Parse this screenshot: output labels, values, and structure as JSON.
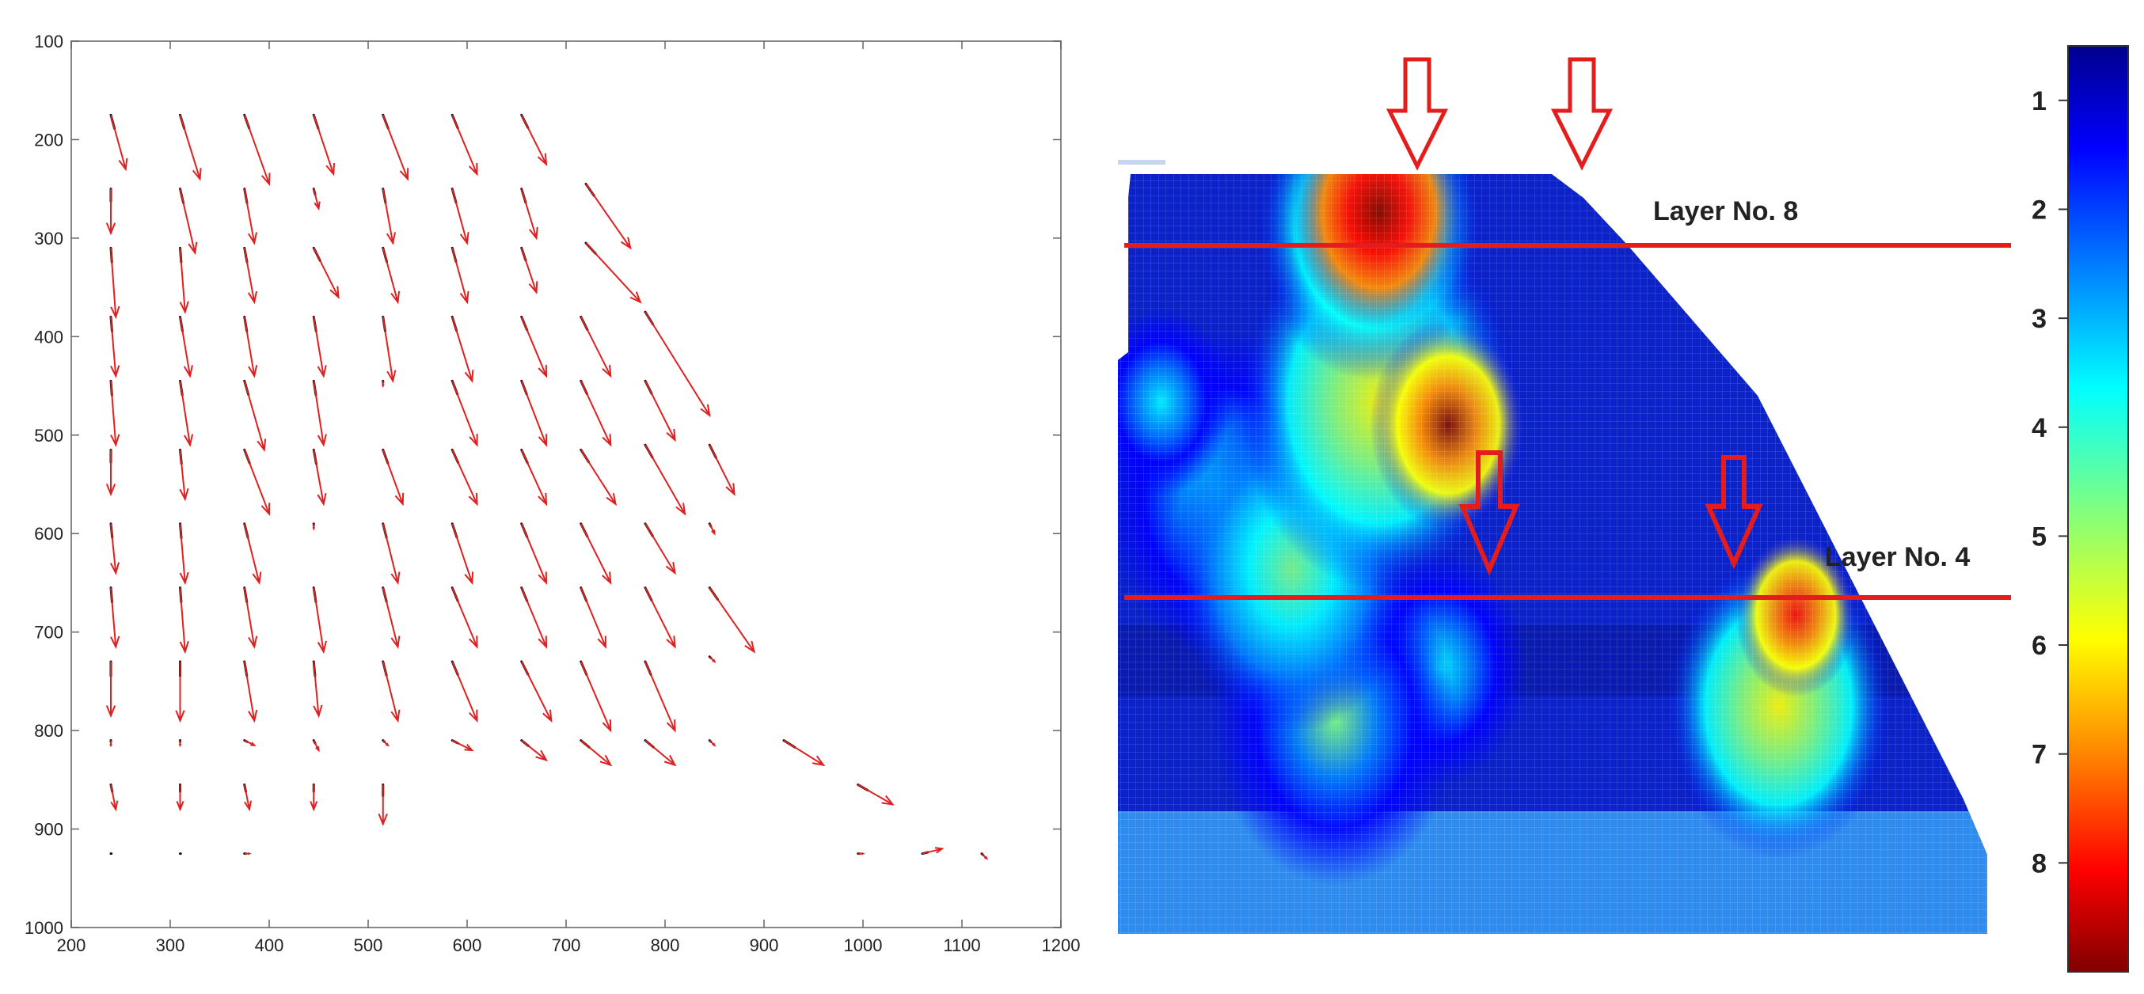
{
  "quiver_plot": {
    "chart_data": {
      "type": "scatter",
      "subtype": "quiver",
      "xlim": [
        200,
        1200
      ],
      "ylim": [
        1000,
        100
      ],
      "y_axis_inverted": true,
      "x_ticks": [
        "200",
        "300",
        "400",
        "500",
        "600",
        "700",
        "800",
        "900",
        "1000",
        "1100",
        "1200"
      ],
      "y_ticks": [
        "100",
        "200",
        "300",
        "400",
        "500",
        "600",
        "700",
        "800",
        "900",
        "1000"
      ],
      "grid": false,
      "colors": {
        "arrow": "#e02020",
        "base_stroke": "#111111",
        "frame": "#888888"
      },
      "arrows": [
        [
          240,
          175,
          255,
          230
        ],
        [
          310,
          175,
          330,
          240
        ],
        [
          375,
          175,
          400,
          245
        ],
        [
          445,
          175,
          465,
          235
        ],
        [
          515,
          175,
          540,
          240
        ],
        [
          585,
          175,
          610,
          235
        ],
        [
          655,
          175,
          680,
          225
        ],
        [
          240,
          250,
          240,
          295
        ],
        [
          310,
          250,
          325,
          315
        ],
        [
          375,
          250,
          385,
          305
        ],
        [
          445,
          250,
          450,
          270
        ],
        [
          515,
          250,
          525,
          305
        ],
        [
          585,
          250,
          600,
          305
        ],
        [
          655,
          250,
          670,
          300
        ],
        [
          720,
          245,
          765,
          310
        ],
        [
          240,
          310,
          245,
          380
        ],
        [
          310,
          310,
          315,
          375
        ],
        [
          375,
          310,
          385,
          365
        ],
        [
          445,
          310,
          470,
          360
        ],
        [
          515,
          310,
          530,
          365
        ],
        [
          585,
          310,
          600,
          365
        ],
        [
          655,
          310,
          670,
          355
        ],
        [
          720,
          305,
          775,
          365
        ],
        [
          240,
          380,
          245,
          440
        ],
        [
          310,
          380,
          320,
          440
        ],
        [
          375,
          380,
          385,
          440
        ],
        [
          445,
          380,
          455,
          440
        ],
        [
          515,
          380,
          525,
          445
        ],
        [
          585,
          380,
          605,
          445
        ],
        [
          655,
          380,
          680,
          440
        ],
        [
          715,
          380,
          745,
          440
        ],
        [
          780,
          375,
          845,
          480
        ],
        [
          240,
          445,
          245,
          510
        ],
        [
          310,
          445,
          320,
          510
        ],
        [
          375,
          445,
          395,
          515
        ],
        [
          445,
          445,
          455,
          510
        ],
        [
          515,
          445,
          515,
          450
        ],
        [
          585,
          445,
          610,
          510
        ],
        [
          655,
          445,
          680,
          510
        ],
        [
          715,
          445,
          745,
          510
        ],
        [
          780,
          445,
          810,
          505
        ],
        [
          240,
          515,
          240,
          560
        ],
        [
          310,
          515,
          315,
          565
        ],
        [
          375,
          515,
          400,
          580
        ],
        [
          445,
          515,
          455,
          570
        ],
        [
          515,
          515,
          535,
          570
        ],
        [
          585,
          515,
          610,
          570
        ],
        [
          655,
          515,
          680,
          570
        ],
        [
          715,
          515,
          750,
          570
        ],
        [
          780,
          510,
          820,
          580
        ],
        [
          845,
          510,
          870,
          560
        ],
        [
          240,
          590,
          245,
          640
        ],
        [
          310,
          590,
          315,
          650
        ],
        [
          375,
          590,
          390,
          650
        ],
        [
          445,
          590,
          445,
          595
        ],
        [
          515,
          590,
          530,
          650
        ],
        [
          585,
          590,
          605,
          650
        ],
        [
          655,
          590,
          680,
          650
        ],
        [
          715,
          590,
          745,
          650
        ],
        [
          780,
          590,
          810,
          640
        ],
        [
          845,
          590,
          850,
          600
        ],
        [
          240,
          655,
          245,
          715
        ],
        [
          310,
          655,
          315,
          720
        ],
        [
          375,
          655,
          385,
          715
        ],
        [
          445,
          655,
          455,
          720
        ],
        [
          515,
          655,
          530,
          715
        ],
        [
          585,
          655,
          610,
          715
        ],
        [
          655,
          655,
          680,
          715
        ],
        [
          715,
          655,
          740,
          715
        ],
        [
          780,
          655,
          810,
          715
        ],
        [
          845,
          655,
          890,
          720
        ],
        [
          240,
          730,
          240,
          785
        ],
        [
          310,
          730,
          310,
          790
        ],
        [
          375,
          730,
          385,
          790
        ],
        [
          445,
          730,
          450,
          785
        ],
        [
          515,
          730,
          530,
          790
        ],
        [
          585,
          730,
          610,
          790
        ],
        [
          655,
          730,
          685,
          790
        ],
        [
          715,
          730,
          745,
          800
        ],
        [
          780,
          730,
          810,
          800
        ],
        [
          845,
          725,
          850,
          730
        ],
        [
          240,
          810,
          240,
          815
        ],
        [
          310,
          810,
          310,
          815
        ],
        [
          375,
          810,
          385,
          815
        ],
        [
          445,
          810,
          450,
          820
        ],
        [
          515,
          810,
          520,
          815
        ],
        [
          585,
          810,
          605,
          820
        ],
        [
          655,
          810,
          680,
          830
        ],
        [
          715,
          810,
          745,
          835
        ],
        [
          780,
          810,
          810,
          835
        ],
        [
          845,
          810,
          850,
          815
        ],
        [
          920,
          810,
          960,
          835
        ],
        [
          240,
          855,
          245,
          880
        ],
        [
          310,
          855,
          310,
          880
        ],
        [
          375,
          855,
          380,
          880
        ],
        [
          445,
          855,
          445,
          880
        ],
        [
          515,
          855,
          515,
          895
        ],
        [
          995,
          855,
          1030,
          875
        ],
        [
          240,
          925,
          242,
          925
        ],
        [
          310,
          925,
          312,
          925
        ],
        [
          375,
          925,
          380,
          925
        ],
        [
          995,
          925,
          1000,
          925
        ],
        [
          1060,
          925,
          1080,
          920
        ],
        [
          1120,
          925,
          1125,
          930
        ]
      ]
    }
  },
  "heatmap_panel": {
    "chart_data": {
      "type": "heatmap",
      "colorscale": "jet",
      "colorbar_ticks": [
        "1",
        "2",
        "3",
        "4",
        "5",
        "6",
        "7",
        "8"
      ],
      "colors": [
        "#00008f",
        "#0000ff",
        "#0080ff",
        "#00ffff",
        "#80ff80",
        "#ffff00",
        "#ff8000",
        "#ff0000",
        "#800000"
      ],
      "hot_spots": [
        {
          "u": 0.3,
          "v": 0.05,
          "r": 0.1,
          "val": 8.5
        },
        {
          "u": 0.38,
          "v": 0.33,
          "r": 0.09,
          "val": 8.0
        },
        {
          "u": 0.3,
          "v": 0.3,
          "r": 0.16,
          "val": 5.5
        },
        {
          "u": 0.29,
          "v": 0.07,
          "r": 0.13,
          "val": 6.0
        },
        {
          "u": 0.78,
          "v": 0.58,
          "r": 0.07,
          "val": 7.5
        },
        {
          "u": 0.76,
          "v": 0.7,
          "r": 0.13,
          "val": 5.5
        },
        {
          "u": 0.2,
          "v": 0.52,
          "r": 0.14,
          "val": 4.8
        },
        {
          "u": 0.12,
          "v": 0.42,
          "r": 0.14,
          "val": 3.5
        },
        {
          "u": 0.25,
          "v": 0.72,
          "r": 0.14,
          "val": 4.0
        },
        {
          "u": 0.37,
          "v": 0.65,
          "r": 0.1,
          "val": 3.4
        },
        {
          "u": 0.05,
          "v": 0.3,
          "r": 0.08,
          "val": 3.5
        }
      ]
    },
    "annotations": {
      "layer_top": "Layer No. 8",
      "layer_bottom": "Layer No. 4",
      "line_color": "#e51c1c",
      "arrow_color": "#e51c1c"
    }
  }
}
